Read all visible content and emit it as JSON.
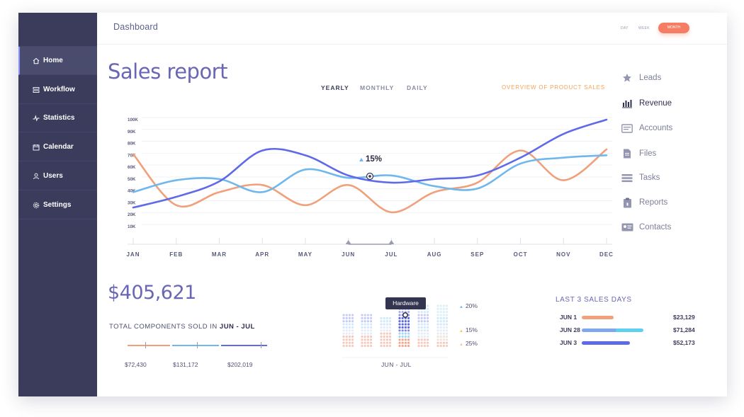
{
  "sidebar": {
    "items": [
      {
        "label": "Home",
        "icon": "home-icon",
        "active": true
      },
      {
        "label": "Workflow",
        "icon": "workflow-icon"
      },
      {
        "label": "Statistics",
        "icon": "statistics-icon"
      },
      {
        "label": "Calendar",
        "icon": "calendar-icon"
      },
      {
        "label": "Users",
        "icon": "user-icon"
      },
      {
        "label": "Settings",
        "icon": "gear-icon"
      }
    ]
  },
  "header": {
    "title": "Dashboard",
    "ranges": [
      "DAY",
      "WEEK",
      "MONTH"
    ],
    "active_range": "MONTH"
  },
  "report": {
    "title": "Sales report",
    "tabs": [
      "YEARLY",
      "MONTHLY",
      "DAILY"
    ],
    "active_tab": "YEARLY",
    "overview_link": "OVERVIEW OF PRODUCT SALES",
    "callout": "15%"
  },
  "right_nav": [
    {
      "label": "Leads",
      "icon": "star-icon"
    },
    {
      "label": "Revenue",
      "icon": "bar-chart-icon",
      "active": true
    },
    {
      "label": "Accounts",
      "icon": "accounts-icon"
    },
    {
      "label": "Files",
      "icon": "file-icon"
    },
    {
      "label": "Tasks",
      "icon": "tasks-icon"
    },
    {
      "label": "Reports",
      "icon": "clipboard-icon"
    },
    {
      "label": "Contacts",
      "icon": "contact-card-icon"
    }
  ],
  "summary": {
    "amount": "$405,621",
    "label_prefix": "TOTAL COMPONENTS SOLD IN ",
    "label_range": "JUN - JUL",
    "segments": [
      {
        "value": "$72,430",
        "color": "#f0a07a"
      },
      {
        "value": "$131,172",
        "color": "#6fb7ec"
      },
      {
        "value": "$202,019",
        "color": "#5f6ae8"
      }
    ]
  },
  "dots_panel": {
    "tooltip": "Hardware",
    "pcts": [
      "20%",
      "15%",
      "25%"
    ],
    "range": "JUN - JUL"
  },
  "last3": {
    "title": "LAST 3 SALES DAYS",
    "days": [
      {
        "label": "JUN 1",
        "value": "$23,129",
        "fill": 0.35,
        "color": "#f0a07a"
      },
      {
        "label": "JUN 28",
        "value": "$71,284",
        "fill": 0.67,
        "color": "#5ed0f0"
      },
      {
        "label": "JUN 3",
        "value": "$52,173",
        "fill": 0.52,
        "color": "#5f6ae8"
      }
    ]
  },
  "colors": {
    "sidebar": "#3b3c5c",
    "accent": "#f57d63",
    "purple": "#5f6ae8",
    "light_blue": "#6fb7ec",
    "orange": "#f0a07a"
  },
  "chart_data": {
    "type": "line",
    "x": [
      "JAN",
      "FEB",
      "MAR",
      "APR",
      "MAY",
      "JUN",
      "JUL",
      "AUG",
      "SEP",
      "OCT",
      "NOV",
      "DEC"
    ],
    "y_ticks": [
      "10K",
      "20K",
      "30K",
      "40K",
      "50K",
      "60K",
      "70K",
      "80K",
      "90K",
      "100K"
    ],
    "ylim": [
      10000,
      100000
    ],
    "grid": true,
    "series": [
      {
        "color": "#5f6ae8",
        "values": [
          26000,
          35000,
          48000,
          74000,
          70000,
          53000,
          47000,
          50000,
          53000,
          68000,
          88000,
          100000
        ]
      },
      {
        "color": "#6fb7ec",
        "values": [
          39000,
          49000,
          50000,
          39000,
          58000,
          51000,
          53000,
          44000,
          42000,
          63000,
          68000,
          70000
        ]
      },
      {
        "color": "#f0a07a",
        "values": [
          71000,
          28000,
          39000,
          45000,
          28000,
          45000,
          22000,
          39000,
          47000,
          74000,
          49000,
          75000
        ]
      }
    ]
  }
}
